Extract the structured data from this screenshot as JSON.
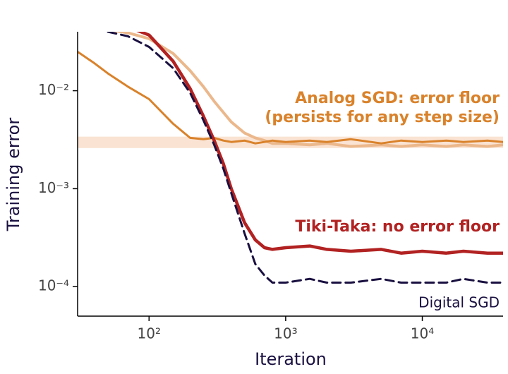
{
  "chart_data": {
    "type": "line",
    "xlabel": "Iteration",
    "ylabel": "Training error",
    "xscale": "log",
    "yscale": "log",
    "xlim": [
      30,
      39000
    ],
    "ylim": [
      5e-05,
      0.04
    ],
    "xticks": [
      {
        "value": 100,
        "label": "10²"
      },
      {
        "value": 1000,
        "label": "10³"
      },
      {
        "value": 10000,
        "label": "10⁴"
      }
    ],
    "yticks": [
      {
        "value": 0.0001,
        "label": "10⁻⁴"
      },
      {
        "value": 0.001,
        "label": "10⁻³"
      },
      {
        "value": 0.01,
        "label": "10⁻²"
      }
    ],
    "x": [
      30,
      40,
      50,
      70,
      100,
      150,
      200,
      250,
      300,
      350,
      400,
      500,
      600,
      700,
      800,
      1000,
      1500,
      2000,
      3000,
      5000,
      7000,
      10000,
      15000,
      20000,
      30000,
      39000
    ],
    "floor_band": {
      "color": "#fae3d3",
      "range": [
        0.0026,
        0.0034
      ]
    },
    "series": [
      {
        "color": "#ebb88c",
        "width": 4,
        "dash": false,
        "values": [
          null,
          null,
          0.042,
          0.039,
          0.034,
          0.024,
          0.016,
          0.011,
          0.0078,
          0.006,
          0.0048,
          0.0037,
          0.0033,
          0.0031,
          0.0029,
          0.0029,
          0.0028,
          0.0029,
          0.0027,
          0.0028,
          0.0027,
          0.0028,
          0.0027,
          0.0028,
          0.0027,
          0.0028
        ]
      },
      {
        "color": "#d9822b",
        "width": 3,
        "dash": false,
        "values": [
          0.025,
          0.019,
          0.015,
          0.011,
          0.0082,
          0.0046,
          0.0033,
          0.0032,
          0.0033,
          0.0031,
          0.003,
          0.0031,
          0.0029,
          0.003,
          0.0031,
          0.003,
          0.0031,
          0.003,
          0.0032,
          0.0029,
          0.0031,
          0.003,
          0.0031,
          0.003,
          0.0031,
          0.003
        ]
      },
      {
        "color": "#b22222",
        "width": 4.5,
        "dash": false,
        "values": [
          null,
          null,
          null,
          0.045,
          0.037,
          0.02,
          0.0105,
          0.0055,
          0.0031,
          0.0018,
          0.001,
          0.00045,
          0.0003,
          0.00025,
          0.00024,
          0.00025,
          0.00026,
          0.00024,
          0.00023,
          0.00024,
          0.00022,
          0.00023,
          0.00022,
          0.00023,
          0.00022,
          0.00022
        ]
      },
      {
        "color": "#1a1040",
        "width": 3,
        "dash": true,
        "values": [
          null,
          null,
          0.04,
          0.036,
          0.028,
          0.017,
          0.0095,
          0.005,
          0.0028,
          0.0016,
          0.0009,
          0.00035,
          0.00017,
          0.00013,
          0.00011,
          0.00011,
          0.00012,
          0.00011,
          0.00011,
          0.00012,
          0.00011,
          0.00011,
          0.00011,
          0.00012,
          0.00011,
          0.00011
        ]
      }
    ],
    "annotations": [
      {
        "text": "Analog SGD: error floor",
        "color": "#d9822b",
        "bold": true
      },
      {
        "text": "(persists for any step size)",
        "color": "#d9822b",
        "bold": true
      },
      {
        "text": "Tiki-Taka: no error floor",
        "color": "#b22222",
        "bold": true
      },
      {
        "text": "Digital SGD",
        "color": "#1a1040",
        "bold": false
      }
    ]
  }
}
